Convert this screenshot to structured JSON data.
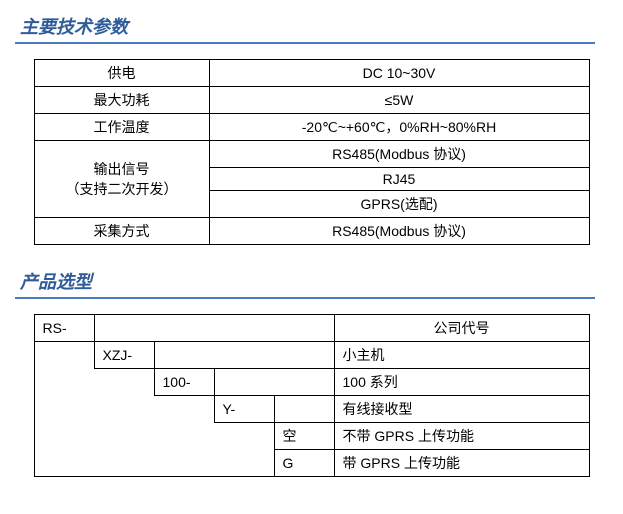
{
  "colors": {
    "title_color": "#2e5c9a",
    "title_border": "#4a7bc0",
    "table_border": "#000000",
    "text": "#000000"
  },
  "sections": {
    "specs_title": "主要技术参数",
    "selection_title": "产品选型"
  },
  "specs": {
    "rows": [
      {
        "label": "供电",
        "value": "DC 10~30V"
      },
      {
        "label": "最大功耗",
        "value": "≤5W"
      },
      {
        "label": "工作温度",
        "value": "-20℃~+60℃，0%RH~80%RH"
      }
    ],
    "output_signal": {
      "label_line1": "输出信号",
      "label_line2": "（支持二次开发）",
      "values": [
        "RS485(Modbus 协议)",
        "RJ45",
        "GPRS(选配)"
      ]
    },
    "collect": {
      "label": "采集方式",
      "value": "RS485(Modbus 协议)"
    }
  },
  "selection": {
    "r1": {
      "code": "RS-",
      "desc": "公司代号"
    },
    "r2": {
      "code": "XZJ-",
      "desc": "小主机"
    },
    "r3": {
      "code": "100-",
      "desc": "100 系列"
    },
    "r4": {
      "code": "Y-",
      "desc": "有线接收型"
    },
    "r5": {
      "code": "空",
      "desc": "不带 GPRS 上传功能"
    },
    "r6": {
      "code": "G",
      "desc": "带 GPRS 上传功能"
    }
  }
}
